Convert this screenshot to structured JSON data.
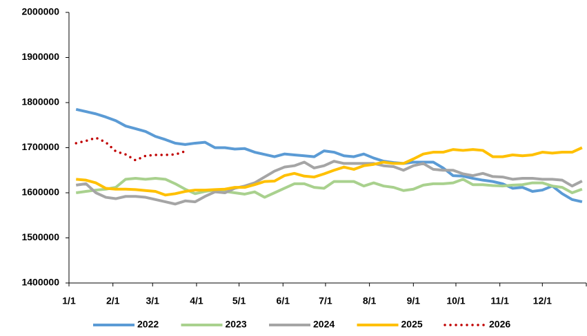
{
  "chart_data": {
    "type": "line",
    "x": [
      5,
      12,
      19,
      26,
      33,
      40,
      47,
      54,
      61,
      68,
      75,
      82,
      89,
      96,
      103,
      110,
      117,
      124,
      131,
      138,
      145,
      152,
      159,
      166,
      173,
      180,
      187,
      194,
      201,
      208,
      215,
      222,
      229,
      236,
      243,
      250,
      257,
      264,
      271,
      278,
      285,
      292,
      299,
      306,
      313,
      320,
      327,
      334,
      341,
      348,
      355,
      362
    ],
    "xlim": [
      0,
      365
    ],
    "xticks": [
      {
        "value": 0,
        "label": "1/1"
      },
      {
        "value": 31,
        "label": "2/1"
      },
      {
        "value": 59,
        "label": "3/1"
      },
      {
        "value": 90,
        "label": "4/1"
      },
      {
        "value": 120,
        "label": "5/1"
      },
      {
        "value": 151,
        "label": "6/1"
      },
      {
        "value": 181,
        "label": "7/1"
      },
      {
        "value": 212,
        "label": "8/1"
      },
      {
        "value": 243,
        "label": "9/1"
      },
      {
        "value": 273,
        "label": "10/1"
      },
      {
        "value": 304,
        "label": "11/1"
      },
      {
        "value": 334,
        "label": "12/1"
      }
    ],
    "ylim": [
      1400000,
      2000000
    ],
    "yticks": [
      1400000,
      1500000,
      1600000,
      1700000,
      1800000,
      1900000,
      2000000
    ],
    "legend": "bottom",
    "series": [
      {
        "name": "2022",
        "color": "#5b9bd5",
        "style": "solid",
        "values": [
          1785000,
          1780000,
          1775000,
          1768000,
          1760000,
          1748000,
          1742000,
          1736000,
          1725000,
          1718000,
          1710000,
          1707000,
          1710000,
          1712000,
          1700000,
          1700000,
          1697000,
          1698000,
          1690000,
          1685000,
          1680000,
          1686000,
          1684000,
          1682000,
          1680000,
          1693000,
          1690000,
          1682000,
          1680000,
          1686000,
          1677000,
          1670000,
          1667000,
          1665000,
          1668000,
          1668000,
          1668000,
          1655000,
          1638000,
          1637000,
          1632000,
          1628000,
          1625000,
          1620000,
          1610000,
          1612000,
          1603000,
          1606000,
          1615000,
          1598000,
          1585000,
          1580000
        ]
      },
      {
        "name": "2023",
        "color": "#a9d18e",
        "style": "solid",
        "values": [
          1600000,
          1603000,
          1606000,
          1608000,
          1612000,
          1630000,
          1632000,
          1630000,
          1632000,
          1630000,
          1620000,
          1608000,
          1598000,
          1603000,
          1606000,
          1603000,
          1600000,
          1597000,
          1602000,
          1590000,
          1600000,
          1610000,
          1620000,
          1620000,
          1612000,
          1610000,
          1625000,
          1625000,
          1625000,
          1615000,
          1622000,
          1615000,
          1612000,
          1605000,
          1608000,
          1617000,
          1620000,
          1620000,
          1622000,
          1630000,
          1618000,
          1618000,
          1616000,
          1615000,
          1617000,
          1618000,
          1622000,
          1622000,
          1615000,
          1612000,
          1600000,
          1608000
        ]
      },
      {
        "name": "2024",
        "color": "#a5a5a5",
        "style": "solid",
        "values": [
          1617000,
          1620000,
          1600000,
          1590000,
          1587000,
          1592000,
          1592000,
          1590000,
          1585000,
          1580000,
          1575000,
          1582000,
          1580000,
          1592000,
          1602000,
          1600000,
          1610000,
          1615000,
          1622000,
          1635000,
          1648000,
          1657000,
          1660000,
          1668000,
          1655000,
          1660000,
          1670000,
          1665000,
          1665000,
          1665000,
          1665000,
          1660000,
          1658000,
          1650000,
          1660000,
          1665000,
          1652000,
          1650000,
          1650000,
          1642000,
          1638000,
          1643000,
          1636000,
          1635000,
          1630000,
          1632000,
          1632000,
          1630000,
          1630000,
          1628000,
          1615000,
          1626000
        ]
      },
      {
        "name": "2025",
        "color": "#ffc000",
        "style": "solid",
        "values": [
          1630000,
          1628000,
          1622000,
          1610000,
          1608000,
          1608000,
          1607000,
          1605000,
          1603000,
          1595000,
          1598000,
          1603000,
          1606000,
          1606000,
          1607000,
          1608000,
          1612000,
          1612000,
          1618000,
          1625000,
          1626000,
          1638000,
          1643000,
          1637000,
          1635000,
          1642000,
          1650000,
          1657000,
          1652000,
          1660000,
          1663000,
          1668000,
          1665000,
          1665000,
          1675000,
          1686000,
          1690000,
          1690000,
          1696000,
          1694000,
          1696000,
          1694000,
          1680000,
          1680000,
          1684000,
          1682000,
          1684000,
          1690000,
          1688000,
          1690000,
          1690000,
          1700000
        ]
      },
      {
        "name": "2026",
        "color": "#c00000",
        "style": "dotted",
        "values": [
          1710000,
          1715000,
          1722000,
          1712000,
          1692000,
          1685000,
          1672000,
          1682000,
          1684000,
          1684000,
          1685000,
          1692000,
          null,
          null,
          null,
          null,
          null,
          null,
          null,
          null,
          null,
          null,
          null,
          null,
          null,
          null,
          null,
          null,
          null,
          null,
          null,
          null,
          null,
          null,
          null,
          null,
          null,
          null,
          null,
          null,
          null,
          null,
          null,
          null,
          null,
          null,
          null,
          null,
          null,
          null,
          null,
          null
        ]
      }
    ]
  }
}
